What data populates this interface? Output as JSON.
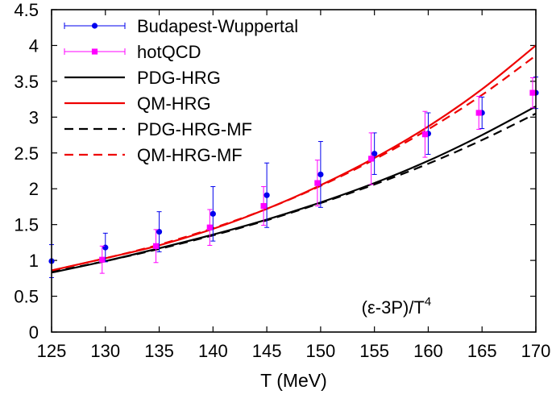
{
  "chart_data": {
    "type": "scatter",
    "xlabel": "T (MeV)",
    "ylabel": "",
    "xlim": [
      125,
      170
    ],
    "ylim": [
      0,
      4.5
    ],
    "xticks": [
      125,
      130,
      135,
      140,
      145,
      150,
      155,
      160,
      165,
      170
    ],
    "yticks": [
      0,
      0.5,
      1,
      1.5,
      2,
      2.5,
      3,
      3.5,
      4,
      4.5
    ],
    "annotation": {
      "base": "(ε-3P)/T",
      "sup": "4"
    },
    "legend_position": "top-left",
    "points": [
      {
        "name": "Budapest-Wuppertal",
        "color": "#0000ee",
        "marker": "circle",
        "x": [
          125,
          130,
          135,
          140,
          145,
          150,
          155,
          160,
          165,
          170
        ],
        "y": [
          0.99,
          1.18,
          1.4,
          1.65,
          1.91,
          2.2,
          2.49,
          2.77,
          3.06,
          3.34
        ],
        "err": [
          0.23,
          0.2,
          0.28,
          0.38,
          0.45,
          0.46,
          0.29,
          0.29,
          0.22,
          0.22
        ]
      },
      {
        "name": "hotQCD",
        "color": "#ff00ff",
        "marker": "square",
        "x": [
          129.7,
          134.7,
          139.7,
          144.7,
          149.7,
          154.7,
          159.7,
          164.7,
          169.7
        ],
        "y": [
          1.01,
          1.2,
          1.46,
          1.76,
          2.08,
          2.42,
          2.76,
          3.06,
          3.34
        ],
        "err": [
          0.19,
          0.23,
          0.25,
          0.27,
          0.32,
          0.36,
          0.32,
          0.23,
          0.21
        ]
      }
    ],
    "lines": [
      {
        "name": "PDG-HRG",
        "color": "#000000",
        "dashed": false,
        "x": [
          125,
          130,
          135,
          140,
          145,
          150,
          155,
          160,
          165,
          170
        ],
        "y": [
          0.83,
          0.99,
          1.17,
          1.36,
          1.57,
          1.81,
          2.08,
          2.39,
          2.75,
          3.15
        ]
      },
      {
        "name": "QM-HRG",
        "color": "#ee0000",
        "dashed": false,
        "x": [
          125,
          130,
          135,
          140,
          145,
          150,
          155,
          160,
          165,
          170
        ],
        "y": [
          0.86,
          1.03,
          1.21,
          1.44,
          1.72,
          2.05,
          2.43,
          2.87,
          3.39,
          4.0
        ]
      },
      {
        "name": "PDG-HRG-MF",
        "color": "#000000",
        "dashed": true,
        "x": [
          125,
          130,
          135,
          140,
          145,
          150,
          155,
          160,
          165,
          170
        ],
        "y": [
          0.84,
          0.99,
          1.16,
          1.35,
          1.56,
          1.8,
          2.06,
          2.35,
          2.68,
          3.05
        ]
      },
      {
        "name": "QM-HRG-MF",
        "color": "#ee0000",
        "dashed": true,
        "x": [
          125,
          130,
          135,
          140,
          145,
          150,
          155,
          160,
          165,
          170
        ],
        "y": [
          0.86,
          1.03,
          1.22,
          1.45,
          1.72,
          2.04,
          2.41,
          2.83,
          3.31,
          3.86
        ]
      }
    ],
    "legend": [
      {
        "label": "Budapest-Wuppertal",
        "kind": "errpoint",
        "color": "#0000ee",
        "marker": "circle"
      },
      {
        "label": "hotQCD",
        "kind": "errpoint",
        "color": "#ff00ff",
        "marker": "square"
      },
      {
        "label": "PDG-HRG",
        "kind": "line",
        "color": "#000000",
        "dashed": false
      },
      {
        "label": "QM-HRG",
        "kind": "line",
        "color": "#ee0000",
        "dashed": false
      },
      {
        "label": "PDG-HRG-MF",
        "kind": "line",
        "color": "#000000",
        "dashed": true
      },
      {
        "label": "QM-HRG-MF",
        "kind": "line",
        "color": "#ee0000",
        "dashed": true
      }
    ]
  }
}
